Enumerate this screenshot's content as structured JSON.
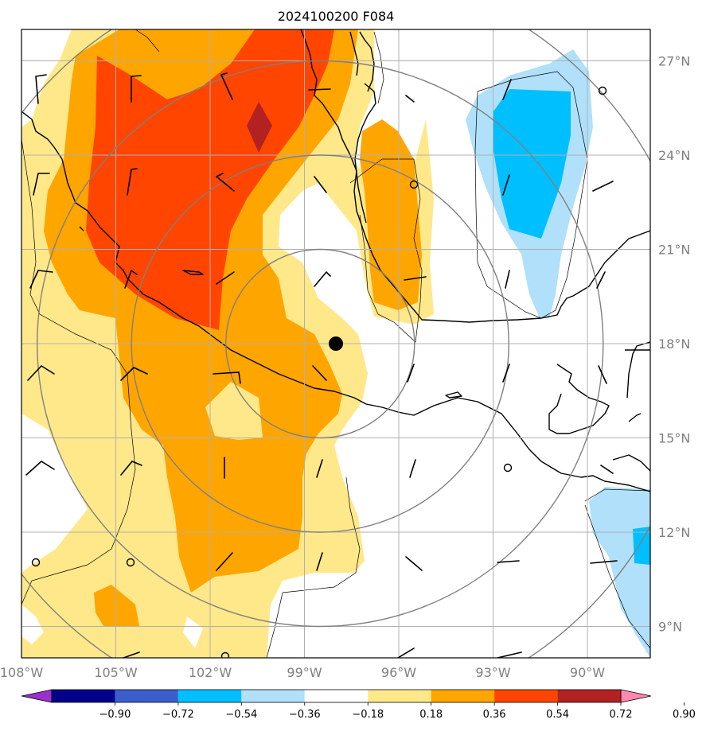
{
  "title": "2024100200 F084",
  "map": {
    "lon_range": [
      -108.0,
      -88.0
    ],
    "lat_range": [
      8.0,
      28.0
    ],
    "lon_ticks": [
      {
        "value": -108,
        "label": "108°W"
      },
      {
        "value": -105,
        "label": "105°W"
      },
      {
        "value": -102,
        "label": "102°W"
      },
      {
        "value": -99,
        "label": "99°W"
      },
      {
        "value": -96,
        "label": "96°W"
      },
      {
        "value": -93,
        "label": "93°W"
      },
      {
        "value": -90,
        "label": "90°W"
      }
    ],
    "lat_ticks": [
      {
        "value": 27,
        "label": "27°N"
      },
      {
        "value": 24,
        "label": "24°N"
      },
      {
        "value": 21,
        "label": "21°N"
      },
      {
        "value": 18,
        "label": "18°N"
      },
      {
        "value": 15,
        "label": "15°N"
      },
      {
        "value": 12,
        "label": "12°N"
      },
      {
        "value": 9,
        "label": "9°N"
      }
    ],
    "grid": true,
    "center_marker": {
      "lon": -98.5,
      "lat": 18.0
    },
    "range_rings_deg": [
      3,
      6,
      9,
      12
    ]
  },
  "colorbar": {
    "levels": [
      "−0.90",
      "−0.72",
      "−0.54",
      "−0.36",
      "−0.18",
      "0.18",
      "0.36",
      "0.54",
      "0.72",
      "0.90"
    ],
    "colors": [
      "#9932cc",
      "#00008b",
      "#3a5fcd",
      "#00bfff",
      "#b0e0fa",
      "#ffffff",
      "#ffe88a",
      "#ffa500",
      "#ff4500",
      "#b22222",
      "#ff88b0"
    ],
    "extend": "both"
  },
  "colors": {
    "light_yellow": "#ffe88a",
    "orange": "#ffa500",
    "red_orange": "#ff4500",
    "dark_red": "#b22222",
    "light_blue": "#b0e0fa",
    "deep_sky_blue": "#00bfff"
  }
}
